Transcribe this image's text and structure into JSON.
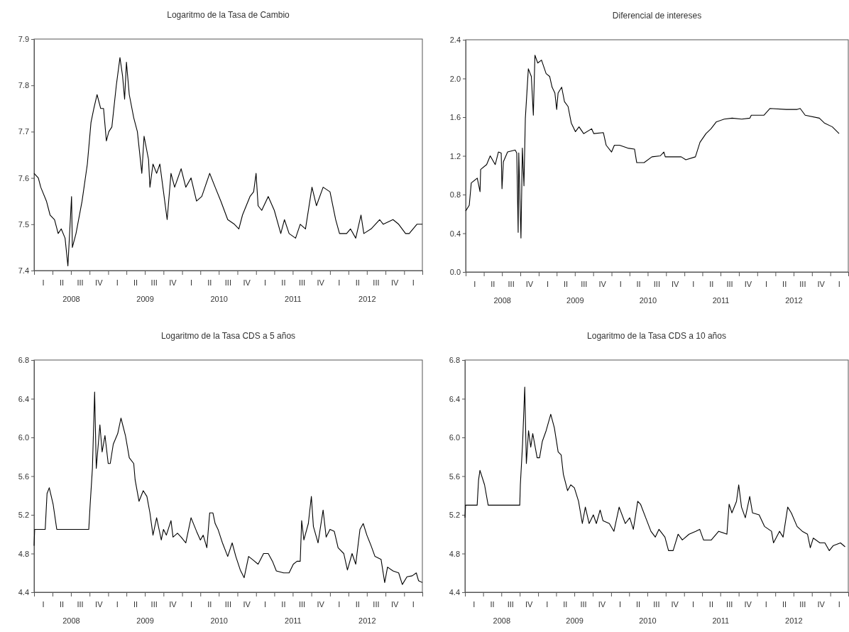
{
  "chart_data": [
    {
      "type": "line",
      "title": "Logaritmo de la Tasa de Cambio",
      "xlim": [
        "2008-01-01",
        "2013-04-01"
      ],
      "ylim": [
        7.4,
        7.9
      ],
      "yticks": [
        7.4,
        7.5,
        7.6,
        7.7,
        7.8,
        7.9
      ],
      "grid": false,
      "xticks": [
        {
          "value": "2008-01-01",
          "label": null
        },
        {
          "value": "2008-04-01",
          "label": null
        },
        {
          "value": "2008-07-01",
          "label": "2008"
        },
        {
          "value": "2008-10-01",
          "label": null
        },
        {
          "value": "2009-01-01",
          "label": null
        },
        {
          "value": "2009-04-01",
          "label": null
        },
        {
          "value": "2009-07-01",
          "label": "2009"
        },
        {
          "value": "2009-10-01",
          "label": null
        },
        {
          "value": "2010-01-01",
          "label": null
        },
        {
          "value": "2010-04-01",
          "label": null
        },
        {
          "value": "2010-07-01",
          "label": "2010"
        },
        {
          "value": "2010-10-01",
          "label": null
        },
        {
          "value": "2011-01-01",
          "label": null
        },
        {
          "value": "2011-04-01",
          "label": null
        },
        {
          "value": "2011-07-01",
          "label": "2011"
        },
        {
          "value": "2011-10-01",
          "label": null
        },
        {
          "value": "2012-01-01",
          "label": null
        },
        {
          "value": "2012-04-01",
          "label": null
        },
        {
          "value": "2012-07-01",
          "label": "2012"
        },
        {
          "value": "2012-10-01",
          "label": null
        },
        {
          "value": "2013-01-01",
          "label": null
        },
        {
          "value": "2013-04-01",
          "label": null
        }
      ],
      "annotations": [
        "I",
        "II",
        "III",
        "IV",
        "I",
        "II",
        "III",
        "IV",
        "I",
        "II",
        "III",
        "IV",
        "I",
        "II",
        "III",
        "IV",
        "I",
        "II",
        "III",
        "IV",
        "I"
      ],
      "series": [
        {
          "color": "#000000",
          "x": [
            "2008-01-01",
            "2008-01-22",
            "2008-02-03",
            "2008-03-02",
            "2008-03-20",
            "2008-04-11",
            "2008-04-29",
            "2008-05-14",
            "2008-06-02",
            "2008-06-16",
            "2008-07-04",
            "2008-07-08",
            "2008-07-26",
            "2008-08-25",
            "2008-09-20",
            "2008-10-08",
            "2008-10-22",
            "2008-11-07",
            "2008-11-25",
            "2008-12-09",
            "2008-12-23",
            "2009-01-04",
            "2009-01-19",
            "2009-02-10",
            "2009-02-28",
            "2009-03-13",
            "2009-03-23",
            "2009-04-01",
            "2009-04-15",
            "2009-05-07",
            "2009-05-25",
            "2009-06-16",
            "2009-06-27",
            "2009-07-19",
            "2009-07-26",
            "2009-08-10",
            "2009-08-28",
            "2009-09-13",
            "2009-10-01",
            "2009-10-19",
            "2009-11-07",
            "2009-11-25",
            "2009-12-27",
            "2010-01-19",
            "2010-02-14",
            "2010-03-13",
            "2010-04-08",
            "2010-05-17",
            "2010-06-13",
            "2010-07-11",
            "2010-08-14",
            "2010-09-16",
            "2010-10-08",
            "2010-10-26",
            "2010-12-02",
            "2010-12-20",
            "2011-01-01",
            "2011-01-11",
            "2011-01-29",
            "2011-03-02",
            "2011-04-01",
            "2011-05-03",
            "2011-05-21",
            "2011-06-13",
            "2011-07-15",
            "2011-08-07",
            "2011-09-02",
            "2011-10-04",
            "2011-10-26",
            "2011-11-28",
            "2012-01-01",
            "2012-01-29",
            "2012-02-17",
            "2012-03-23",
            "2012-04-11",
            "2012-05-07",
            "2012-06-02",
            "2012-06-16",
            "2012-07-22",
            "2012-09-02",
            "2012-09-20",
            "2012-11-07",
            "2012-12-05",
            "2013-01-08",
            "2013-01-26",
            "2013-03-05",
            "2013-04-01"
          ],
          "values": [
            7.61,
            7.6,
            7.58,
            7.55,
            7.52,
            7.51,
            7.48,
            7.49,
            7.47,
            7.41,
            7.56,
            7.45,
            7.48,
            7.55,
            7.63,
            7.72,
            7.75,
            7.78,
            7.75,
            7.75,
            7.68,
            7.7,
            7.71,
            7.8,
            7.86,
            7.82,
            7.77,
            7.85,
            7.78,
            7.73,
            7.7,
            7.61,
            7.69,
            7.64,
            7.58,
            7.63,
            7.61,
            7.63,
            7.57,
            7.51,
            7.61,
            7.58,
            7.62,
            7.58,
            7.6,
            7.55,
            7.56,
            7.61,
            7.58,
            7.55,
            7.51,
            7.5,
            7.49,
            7.52,
            7.56,
            7.57,
            7.61,
            7.54,
            7.53,
            7.56,
            7.53,
            7.48,
            7.51,
            7.48,
            7.47,
            7.5,
            7.49,
            7.58,
            7.54,
            7.58,
            7.57,
            7.51,
            7.48,
            7.48,
            7.49,
            7.47,
            7.52,
            7.48,
            7.49,
            7.51,
            7.5,
            7.51,
            7.5,
            7.48,
            7.48,
            7.5,
            7.5
          ]
        }
      ]
    },
    {
      "type": "line",
      "title": "Diferencial de intereses",
      "xlim": [
        "2008-01-01",
        "2013-04-01"
      ],
      "ylim": [
        0,
        2.4
      ],
      "yticks": [
        {
          "value": 0,
          "label": "0.0"
        },
        0.4,
        0.8,
        1.2,
        1.6,
        {
          "value": 2,
          "label": "2.0"
        },
        2.4
      ],
      "grid": false,
      "xticks": [
        {
          "value": "2008-01-01",
          "label": null
        },
        {
          "value": "2008-04-01",
          "label": null
        },
        {
          "value": "2008-07-01",
          "label": "2008"
        },
        {
          "value": "2008-10-01",
          "label": null
        },
        {
          "value": "2009-01-01",
          "label": null
        },
        {
          "value": "2009-04-01",
          "label": null
        },
        {
          "value": "2009-07-01",
          "label": "2009"
        },
        {
          "value": "2009-10-01",
          "label": null
        },
        {
          "value": "2010-01-01",
          "label": null
        },
        {
          "value": "2010-04-01",
          "label": null
        },
        {
          "value": "2010-07-01",
          "label": "2010"
        },
        {
          "value": "2010-10-01",
          "label": null
        },
        {
          "value": "2011-01-01",
          "label": null
        },
        {
          "value": "2011-04-01",
          "label": null
        },
        {
          "value": "2011-07-01",
          "label": "2011"
        },
        {
          "value": "2011-10-01",
          "label": null
        },
        {
          "value": "2012-01-01",
          "label": null
        },
        {
          "value": "2012-04-01",
          "label": null
        },
        {
          "value": "2012-07-01",
          "label": "2012"
        },
        {
          "value": "2012-10-01",
          "label": null
        },
        {
          "value": "2013-01-01",
          "label": null
        },
        {
          "value": "2013-04-01",
          "label": null
        }
      ],
      "annotations": [
        "I",
        "II",
        "III",
        "IV",
        "I",
        "II",
        "III",
        "IV",
        "I",
        "II",
        "III",
        "IV",
        "I",
        "II",
        "III",
        "IV",
        "I",
        "II",
        "III",
        "IV",
        "I"
      ],
      "series": [
        {
          "color": "#000000",
          "x": [
            "2008-01-01",
            "2008-01-19",
            "2008-01-29",
            "2008-02-28",
            "2008-03-13",
            "2008-03-16",
            "2008-04-15",
            "2008-05-03",
            "2008-05-28",
            "2008-06-13",
            "2008-06-27",
            "2008-07-01",
            "2008-07-08",
            "2008-07-29",
            "2008-09-05",
            "2008-09-13",
            "2008-09-20",
            "2008-09-23",
            "2008-10-04",
            "2008-10-11",
            "2008-10-19",
            "2008-10-26",
            "2008-11-10",
            "2008-11-25",
            "2008-12-05",
            "2008-12-13",
            "2008-12-27",
            "2009-01-15",
            "2009-02-07",
            "2009-02-25",
            "2009-03-09",
            "2009-03-23",
            "2009-04-01",
            "2009-04-08",
            "2009-04-26",
            "2009-05-10",
            "2009-05-28",
            "2009-06-13",
            "2009-07-04",
            "2009-07-22",
            "2009-08-14",
            "2009-09-23",
            "2009-10-04",
            "2009-11-21",
            "2009-12-05",
            "2010-01-01",
            "2010-01-15",
            "2010-02-10",
            "2010-03-23",
            "2010-04-26",
            "2010-05-07",
            "2010-06-13",
            "2010-07-22",
            "2010-09-02",
            "2010-09-20",
            "2010-09-27",
            "2010-12-16",
            "2011-01-08",
            "2011-02-25",
            "2011-03-20",
            "2011-04-19",
            "2011-05-14",
            "2011-06-09",
            "2011-07-19",
            "2011-08-28",
            "2011-10-15",
            "2011-11-25",
            "2011-12-02",
            "2012-02-03",
            "2012-03-05",
            "2012-05-25",
            "2012-07-19",
            "2012-08-03",
            "2012-08-28",
            "2012-11-07",
            "2012-12-02",
            "2013-01-11",
            "2013-02-14"
          ],
          "values": [
            0.63,
            0.69,
            0.92,
            0.97,
            0.83,
            1.06,
            1.11,
            1.2,
            1.11,
            1.24,
            1.23,
            0.86,
            1.14,
            1.24,
            1.26,
            1.23,
            0.41,
            1.23,
            0.35,
            1.28,
            0.89,
            1.59,
            2.1,
            2.02,
            1.62,
            2.24,
            2.16,
            2.19,
            2.05,
            2.02,
            1.91,
            1.85,
            1.68,
            1.85,
            1.91,
            1.76,
            1.71,
            1.54,
            1.45,
            1.5,
            1.43,
            1.48,
            1.43,
            1.44,
            1.31,
            1.24,
            1.31,
            1.31,
            1.28,
            1.27,
            1.13,
            1.13,
            1.19,
            1.2,
            1.24,
            1.19,
            1.19,
            1.16,
            1.19,
            1.34,
            1.43,
            1.48,
            1.55,
            1.58,
            1.59,
            1.58,
            1.59,
            1.62,
            1.62,
            1.69,
            1.68,
            1.68,
            1.69,
            1.62,
            1.59,
            1.54,
            1.5,
            1.43
          ]
        }
      ]
    },
    {
      "type": "line",
      "title": "Logaritmo de la Tasa CDS a 5 años",
      "xlim": [
        "2008-01-01",
        "2013-04-01"
      ],
      "ylim": [
        4.4,
        6.8
      ],
      "yticks": [
        4.4,
        4.8,
        5.2,
        5.6,
        {
          "value": 6,
          "label": "6.0"
        },
        6.4,
        6.8
      ],
      "grid": false,
      "xticks": [
        {
          "value": "2008-01-01",
          "label": null
        },
        {
          "value": "2008-04-01",
          "label": null
        },
        {
          "value": "2008-07-01",
          "label": "2008"
        },
        {
          "value": "2008-10-01",
          "label": null
        },
        {
          "value": "2009-01-01",
          "label": null
        },
        {
          "value": "2009-04-01",
          "label": null
        },
        {
          "value": "2009-07-01",
          "label": "2009"
        },
        {
          "value": "2009-10-01",
          "label": null
        },
        {
          "value": "2010-01-01",
          "label": null
        },
        {
          "value": "2010-04-01",
          "label": null
        },
        {
          "value": "2010-07-01",
          "label": "2010"
        },
        {
          "value": "2010-10-01",
          "label": null
        },
        {
          "value": "2011-01-01",
          "label": null
        },
        {
          "value": "2011-04-01",
          "label": null
        },
        {
          "value": "2011-07-01",
          "label": "2011"
        },
        {
          "value": "2011-10-01",
          "label": null
        },
        {
          "value": "2012-01-01",
          "label": null
        },
        {
          "value": "2012-04-01",
          "label": null
        },
        {
          "value": "2012-07-01",
          "label": "2012"
        },
        {
          "value": "2012-10-01",
          "label": null
        },
        {
          "value": "2013-01-01",
          "label": null
        },
        {
          "value": "2013-04-01",
          "label": null
        }
      ],
      "annotations": [
        "I",
        "II",
        "III",
        "IV",
        "I",
        "II",
        "III",
        "IV",
        "I",
        "II",
        "III",
        "IV",
        "I",
        "II",
        "III",
        "IV",
        "I",
        "II",
        "III",
        "IV",
        "I"
      ],
      "series": [
        {
          "color": "#000000",
          "x": [
            "2008-01-01",
            "2008-01-04",
            "2008-02-25",
            "2008-03-05",
            "2008-03-16",
            "2008-04-04",
            "2008-04-22",
            "2008-09-27",
            "2008-10-04",
            "2008-10-15",
            "2008-10-26",
            "2008-11-03",
            "2008-11-21",
            "2008-12-02",
            "2008-12-16",
            "2009-01-01",
            "2009-01-11",
            "2009-01-26",
            "2009-02-17",
            "2009-03-05",
            "2009-03-27",
            "2009-04-15",
            "2009-05-07",
            "2009-05-14",
            "2009-06-02",
            "2009-06-23",
            "2009-07-11",
            "2009-07-26",
            "2009-08-10",
            "2009-08-28",
            "2009-09-20",
            "2009-10-01",
            "2009-10-15",
            "2009-11-07",
            "2009-11-17",
            "2009-12-09",
            "2009-12-27",
            "2010-01-19",
            "2010-02-14",
            "2010-03-13",
            "2010-04-01",
            "2010-04-15",
            "2010-05-03",
            "2010-05-17",
            "2010-06-02",
            "2010-06-13",
            "2010-06-27",
            "2010-07-19",
            "2010-08-14",
            "2010-09-05",
            "2010-09-23",
            "2010-10-15",
            "2010-11-03",
            "2010-11-25",
            "2010-12-13",
            "2011-01-11",
            "2011-02-07",
            "2011-03-02",
            "2011-03-23",
            "2011-04-11",
            "2011-05-17",
            "2011-06-13",
            "2011-07-04",
            "2011-07-22",
            "2011-08-07",
            "2011-08-14",
            "2011-08-25",
            "2011-09-16",
            "2011-10-01",
            "2011-10-11",
            "2011-11-03",
            "2011-11-28",
            "2011-12-13",
            "2012-01-01",
            "2012-01-22",
            "2012-02-10",
            "2012-03-09",
            "2012-03-27",
            "2012-04-19",
            "2012-05-07",
            "2012-05-28",
            "2012-06-13",
            "2012-07-01",
            "2012-07-22",
            "2012-08-10",
            "2012-09-09",
            "2012-09-27",
            "2012-10-11",
            "2012-11-07",
            "2012-12-05",
            "2012-12-23",
            "2013-01-15",
            "2013-02-10",
            "2013-03-02",
            "2013-03-13",
            "2013-04-01"
          ],
          "values": [
            4.88,
            5.05,
            5.05,
            5.42,
            5.48,
            5.31,
            5.05,
            5.05,
            5.31,
            5.68,
            6.47,
            5.68,
            6.13,
            5.85,
            6.02,
            5.73,
            5.73,
            5.93,
            6.04,
            6.2,
            6.02,
            5.79,
            5.73,
            5.56,
            5.34,
            5.45,
            5.39,
            5.22,
            4.99,
            5.17,
            4.94,
            5.05,
            4.99,
            5.14,
            4.97,
            5.01,
            4.97,
            4.91,
            5.17,
            5.03,
            4.94,
            4.99,
            4.86,
            5.22,
            5.22,
            5.11,
            5.05,
            4.91,
            4.77,
            4.91,
            4.77,
            4.63,
            4.55,
            4.77,
            4.74,
            4.69,
            4.8,
            4.8,
            4.72,
            4.62,
            4.6,
            4.6,
            4.69,
            4.72,
            4.72,
            5.14,
            4.94,
            5.11,
            5.39,
            5.08,
            4.91,
            5.25,
            4.97,
            5.05,
            5.03,
            4.86,
            4.8,
            4.63,
            4.8,
            4.69,
            5.05,
            5.11,
            4.99,
            4.88,
            4.77,
            4.74,
            4.5,
            4.66,
            4.62,
            4.6,
            4.48,
            4.56,
            4.57,
            4.6,
            4.52,
            4.5
          ]
        }
      ]
    },
    {
      "type": "line",
      "title": "Logaritmo de la Tasa CDS a 10 años",
      "xlim": [
        "2008-01-01",
        "2013-04-01"
      ],
      "ylim": [
        4.4,
        6.8
      ],
      "yticks": [
        4.4,
        4.8,
        5.2,
        5.6,
        {
          "value": 6,
          "label": "6.0"
        },
        6.4,
        6.8
      ],
      "grid": false,
      "xticks": [
        {
          "value": "2008-01-01",
          "label": null
        },
        {
          "value": "2008-04-01",
          "label": null
        },
        {
          "value": "2008-07-01",
          "label": "2008"
        },
        {
          "value": "2008-10-01",
          "label": null
        },
        {
          "value": "2009-01-01",
          "label": null
        },
        {
          "value": "2009-04-01",
          "label": null
        },
        {
          "value": "2009-07-01",
          "label": "2009"
        },
        {
          "value": "2009-10-01",
          "label": null
        },
        {
          "value": "2010-01-01",
          "label": null
        },
        {
          "value": "2010-04-01",
          "label": null
        },
        {
          "value": "2010-07-01",
          "label": "2010"
        },
        {
          "value": "2010-10-01",
          "label": null
        },
        {
          "value": "2011-01-01",
          "label": null
        },
        {
          "value": "2011-04-01",
          "label": null
        },
        {
          "value": "2011-07-01",
          "label": "2011"
        },
        {
          "value": "2011-10-01",
          "label": null
        },
        {
          "value": "2012-01-01",
          "label": null
        },
        {
          "value": "2012-04-01",
          "label": null
        },
        {
          "value": "2012-07-01",
          "label": "2012"
        },
        {
          "value": "2012-10-01",
          "label": null
        },
        {
          "value": "2013-01-01",
          "label": null
        },
        {
          "value": "2013-04-01",
          "label": null
        }
      ],
      "annotations": [
        "I",
        "II",
        "III",
        "IV",
        "I",
        "II",
        "III",
        "IV",
        "I",
        "II",
        "III",
        "IV",
        "I",
        "II",
        "III",
        "IV",
        "I",
        "II",
        "III",
        "IV",
        "I"
      ],
      "series": [
        {
          "color": "#000000",
          "x": [
            "2008-01-01",
            "2008-01-04",
            "2008-03-02",
            "2008-03-09",
            "2008-03-16",
            "2008-04-08",
            "2008-04-26",
            "2008-10-01",
            "2008-10-04",
            "2008-10-15",
            "2008-10-26",
            "2008-11-03",
            "2008-11-14",
            "2008-11-25",
            "2008-12-05",
            "2008-12-27",
            "2009-01-08",
            "2009-01-22",
            "2009-02-10",
            "2009-03-05",
            "2009-03-23",
            "2009-04-11",
            "2009-04-26",
            "2009-05-07",
            "2009-05-28",
            "2009-06-13",
            "2009-07-01",
            "2009-07-22",
            "2009-08-10",
            "2009-08-25",
            "2009-09-13",
            "2009-10-04",
            "2009-10-19",
            "2009-11-07",
            "2009-11-21",
            "2009-12-23",
            "2010-01-15",
            "2010-02-10",
            "2010-03-13",
            "2010-04-04",
            "2010-04-22",
            "2010-05-14",
            "2010-05-28",
            "2010-06-23",
            "2010-07-19",
            "2010-08-10",
            "2010-08-28",
            "2010-09-27",
            "2010-10-15",
            "2010-11-07",
            "2010-12-02",
            "2010-12-23",
            "2011-01-26",
            "2011-02-28",
            "2011-03-20",
            "2011-04-08",
            "2011-05-17",
            "2011-06-23",
            "2011-08-03",
            "2011-08-14",
            "2011-08-28",
            "2011-09-20",
            "2011-10-01",
            "2011-10-15",
            "2011-11-03",
            "2011-11-25",
            "2011-12-09",
            "2012-01-11",
            "2012-02-07",
            "2012-03-13",
            "2012-03-23",
            "2012-04-22",
            "2012-05-10",
            "2012-06-02",
            "2012-06-20",
            "2012-07-19",
            "2012-08-14",
            "2012-09-09",
            "2012-09-23",
            "2012-10-08",
            "2012-11-10",
            "2012-12-05",
            "2012-12-27",
            "2013-01-15",
            "2013-02-21",
            "2013-03-16"
          ],
          "values": [
            5.17,
            5.3,
            5.3,
            5.56,
            5.66,
            5.51,
            5.3,
            5.3,
            5.51,
            5.93,
            6.52,
            5.73,
            6.07,
            5.9,
            6.04,
            5.79,
            5.79,
            5.96,
            6.07,
            6.24,
            6.1,
            5.85,
            5.82,
            5.62,
            5.45,
            5.51,
            5.48,
            5.34,
            5.11,
            5.28,
            5.11,
            5.2,
            5.11,
            5.25,
            5.14,
            5.11,
            5.03,
            5.28,
            5.11,
            5.17,
            5.05,
            5.34,
            5.31,
            5.17,
            5.03,
            4.97,
            5.05,
            4.97,
            4.83,
            4.83,
            5.0,
            4.94,
            5.0,
            5.03,
            5.05,
            4.94,
            4.94,
            5.03,
            5.0,
            5.31,
            5.22,
            5.34,
            5.51,
            5.28,
            5.17,
            5.39,
            5.22,
            5.2,
            5.08,
            5.03,
            4.91,
            5.03,
            4.97,
            5.28,
            5.22,
            5.08,
            5.03,
            5.0,
            4.86,
            4.96,
            4.91,
            4.91,
            4.83,
            4.88,
            4.91,
            4.87
          ]
        }
      ]
    }
  ]
}
